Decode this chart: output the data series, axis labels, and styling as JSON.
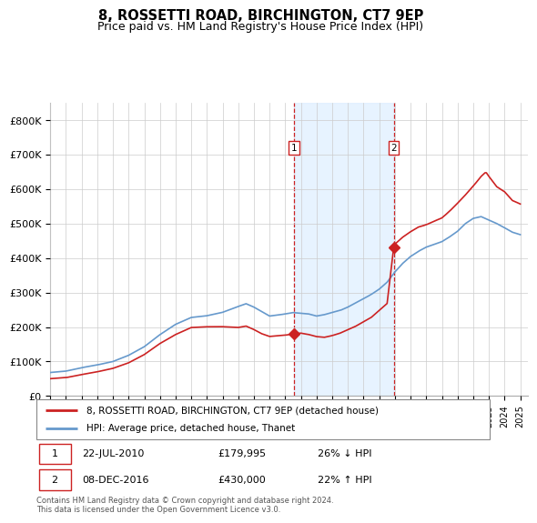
{
  "title": "8, ROSSETTI ROAD, BIRCHINGTON, CT7 9EP",
  "subtitle": "Price paid vs. HM Land Registry's House Price Index (HPI)",
  "hpi_color": "#6699cc",
  "price_color": "#cc2222",
  "sale1_date": 2010.55,
  "sale1_price": 179995,
  "sale2_date": 2016.92,
  "sale2_price": 430000,
  "vline_color": "#cc2222",
  "shade_color": "#ddeeff",
  "background_color": "#ffffff",
  "grid_color": "#cccccc",
  "legend_label_price": "8, ROSSETTI ROAD, BIRCHINGTON, CT7 9EP (detached house)",
  "legend_label_hpi": "HPI: Average price, detached house, Thanet",
  "footer": "Contains HM Land Registry data © Crown copyright and database right 2024.\nThis data is licensed under the Open Government Licence v3.0.",
  "yticks": [
    0,
    100000,
    200000,
    300000,
    400000,
    500000,
    600000,
    700000,
    800000
  ],
  "ytick_labels": [
    "£0",
    "£100K",
    "£200K",
    "£300K",
    "£400K",
    "£500K",
    "£600K",
    "£700K",
    "£800K"
  ]
}
